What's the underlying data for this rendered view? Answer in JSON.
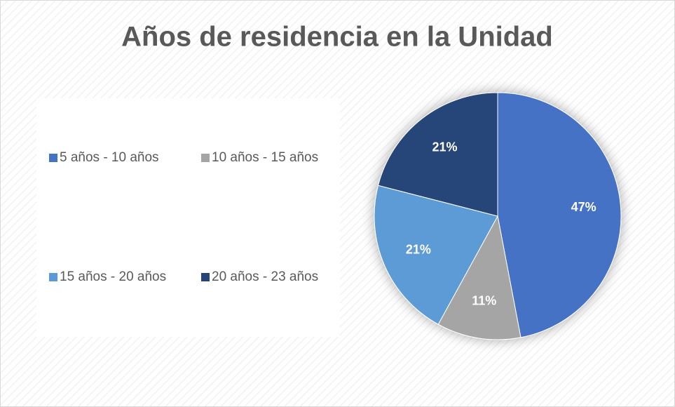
{
  "chart_data": {
    "type": "pie",
    "title": "Años de residencia en la Unidad",
    "categories": [
      "5 años - 10 años",
      "10 años - 15 años",
      "15 años - 20 años",
      "20 años - 23 años"
    ],
    "values": [
      47,
      11,
      21,
      21
    ],
    "value_labels": [
      "47%",
      "11%",
      "21%",
      "21%"
    ],
    "colors": [
      "#4472c4",
      "#a5a5a5",
      "#5b9bd5",
      "#264478"
    ]
  }
}
